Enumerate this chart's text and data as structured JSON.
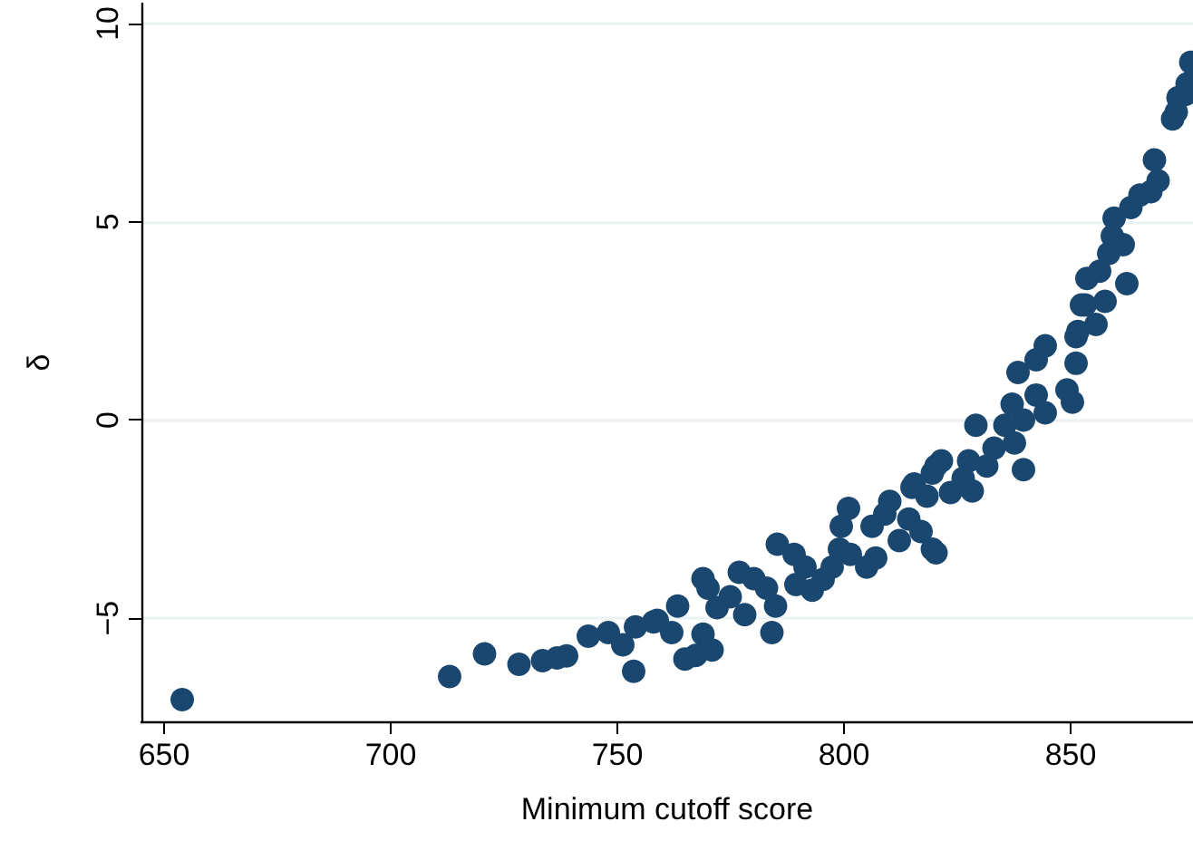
{
  "chart_data": {
    "type": "scatter",
    "xlabel": "Minimum cutoff score",
    "ylabel": "δ",
    "xlim": [
      645,
      877
    ],
    "ylim": [
      -7.6,
      10.5
    ],
    "xticks": [
      650,
      700,
      750,
      800,
      850
    ],
    "yticks": [
      -5,
      0,
      5,
      10
    ],
    "grid": "y",
    "marker": "circle",
    "series": [
      {
        "color": "#1a476f",
        "x": [
          654,
          713,
          720.7,
          728.3,
          733.5,
          736.7,
          738.8,
          743.6,
          748,
          751.2,
          753.6,
          754,
          758,
          758.8,
          763.3,
          762,
          764.9,
          767.3,
          770.9,
          768.9,
          770,
          768.9,
          772,
          774.9,
          776.9,
          778.1,
          780.1,
          782.9,
          784.1,
          785.3,
          784.9,
          789,
          789.4,
          791.4,
          793,
          795.4,
          797.4,
          799,
          799.4,
          801,
          801.4,
          805,
          806.2,
          809,
          810.1,
          812.2,
          814.3,
          815.5,
          818.3,
          819.5,
          820.3,
          817,
          807,
          815,
          820.3,
          819.5,
          821.5,
          823.5,
          826.3,
          828.3,
          829.1,
          827.5,
          831.5,
          833.1,
          835.5,
          837.1,
          837.6,
          839.6,
          839.6,
          842.4,
          844.4,
          838.4,
          842.4,
          844.4,
          849.2,
          850.4,
          851.2,
          851.2,
          852.4,
          853.6,
          851.6,
          853.2,
          855.6,
          857.6,
          856.4,
          862.4,
          858.4,
          859.2,
          861.6,
          859.6,
          863.3,
          865.3,
          867.7,
          869.3,
          868.5,
          872.5,
          873.7,
          875.3,
          876.5,
          875.7,
          873.3
        ],
        "values": [
          -7.05,
          -6.47,
          -5.9,
          -6.16,
          -6.07,
          -6.0,
          -5.95,
          -5.45,
          -5.36,
          -5.67,
          -6.34,
          -5.22,
          -5.09,
          -5.05,
          -4.69,
          -5.36,
          -6.03,
          -5.94,
          -5.8,
          -4.0,
          -4.24,
          -5.4,
          -4.73,
          -4.46,
          -3.84,
          -4.91,
          -4.0,
          -4.24,
          -5.36,
          -3.13,
          -4.69,
          -3.39,
          -4.15,
          -3.71,
          -4.29,
          -4.02,
          -3.71,
          -3.26,
          -2.68,
          -2.23,
          -3.39,
          -3.71,
          -2.68,
          -2.37,
          -2.05,
          -3.04,
          -2.5,
          -1.61,
          -1.92,
          -3.26,
          -1.16,
          -2.81,
          -3.48,
          -1.7,
          -3.35,
          -1.34,
          -1.03,
          -1.83,
          -1.47,
          -1.79,
          -0.13,
          -1.03,
          -1.16,
          -0.71,
          -0.13,
          0.4,
          -0.58,
          -1.25,
          0,
          0.63,
          0.18,
          1.2,
          1.52,
          1.87,
          0.76,
          0.45,
          1.43,
          2.1,
          2.9,
          3.57,
          2.23,
          2.9,
          2.41,
          2.99,
          3.75,
          3.44,
          4.2,
          4.64,
          4.42,
          5.09,
          5.36,
          5.67,
          5.76,
          6.03,
          6.56,
          7.59,
          8.13,
          8.21,
          9.02,
          8.48,
          7.77
        ]
      }
    ]
  }
}
